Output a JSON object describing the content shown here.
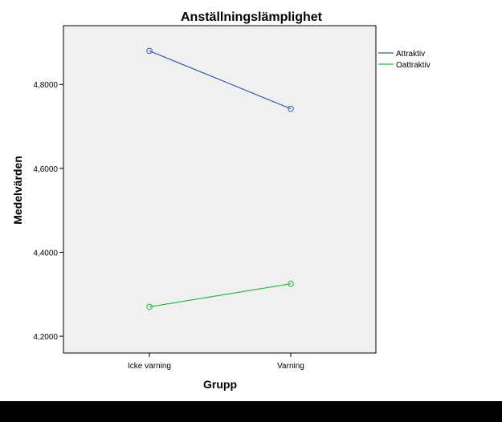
{
  "chart_data": {
    "type": "line",
    "title": "Anställningslämplighet",
    "xlabel": "Grupp",
    "ylabel": "Medelvärden",
    "categories": [
      "Icke varning",
      "Varning"
    ],
    "yticks": [
      4.2,
      4.4,
      4.6,
      4.8
    ],
    "ytick_labels": [
      "4,2000",
      "4,4000",
      "4,6000",
      "4,8000"
    ],
    "ylim": [
      4.16,
      4.94
    ],
    "grid": false,
    "legend_position": "right",
    "series": [
      {
        "name": "Attraktiv",
        "color": "#3a5bb5",
        "values": [
          4.88,
          4.742
        ]
      },
      {
        "name": "Oattraktiv",
        "color": "#2cb540",
        "values": [
          4.27,
          4.325
        ]
      }
    ]
  }
}
